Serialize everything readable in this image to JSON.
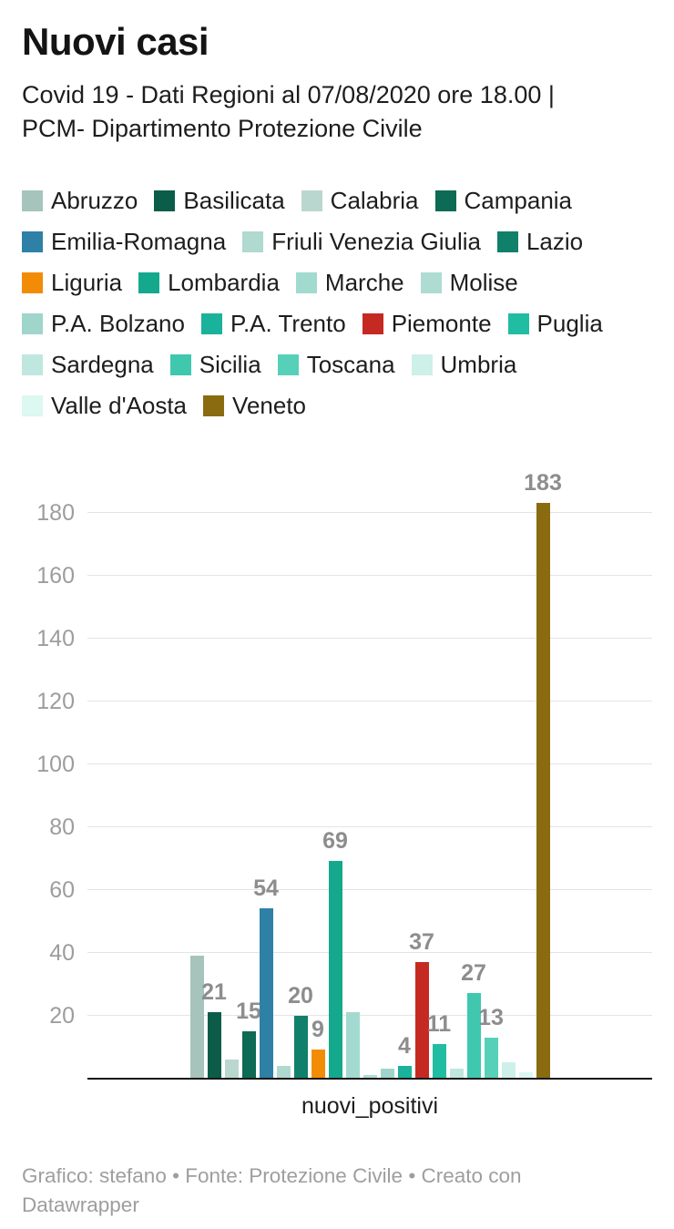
{
  "header": {
    "title": "Nuovi casi",
    "description": "Covid 19 - Dati Regioni al 07/08/2020 ore 18.00 | PCM- Dipartimento Protezione Civile"
  },
  "colors": {
    "background": "#ffffff",
    "gridline": "#e4e4e4",
    "baseline": "#161616",
    "axis_text": "#9d9d9d",
    "value_label": "#8d8d8d",
    "body_text": "#1d1d1d",
    "footer_text": "#9e9e9e"
  },
  "chart_data": {
    "type": "bar",
    "title": "Nuovi casi",
    "subtitle": "Covid 19 - Dati Regioni al 07/08/2020 ore 18.00 | PCM- Dipartimento Protezione Civile",
    "xlabel": "nuovi_positivi",
    "ylabel": "",
    "ylim": [
      0,
      190
    ],
    "yticks": [
      20,
      40,
      60,
      80,
      100,
      120,
      140,
      160,
      180
    ],
    "grid": true,
    "legend_position": "top",
    "categories": [
      "nuovi_positivi"
    ],
    "series": [
      {
        "name": "Abruzzo",
        "value": 39,
        "color": "#a6c4bb",
        "label_visible": false
      },
      {
        "name": "Basilicata",
        "value": 21,
        "color": "#0b5d49",
        "label_visible": true
      },
      {
        "name": "Calabria",
        "value": 6,
        "color": "#bad7cf",
        "label_visible": false
      },
      {
        "name": "Campania",
        "value": 15,
        "color": "#0d6b55",
        "label_visible": true
      },
      {
        "name": "Emilia-Romagna",
        "value": 54,
        "color": "#2e80a7",
        "label_visible": true
      },
      {
        "name": "Friuli Venezia Giulia",
        "value": 4,
        "color": "#b0d9d0",
        "label_visible": false
      },
      {
        "name": "Lazio",
        "value": 20,
        "color": "#10806a",
        "label_visible": true
      },
      {
        "name": "Liguria",
        "value": 9,
        "color": "#f28c06",
        "label_visible": true
      },
      {
        "name": "Lombardia",
        "value": 69,
        "color": "#14a98d",
        "label_visible": true
      },
      {
        "name": "Marche",
        "value": 21,
        "color": "#a3dad0",
        "label_visible": false
      },
      {
        "name": "Molise",
        "value": 1,
        "color": "#aedcd3",
        "label_visible": false
      },
      {
        "name": "P.A. Bolzano",
        "value": 3,
        "color": "#9fd5ca",
        "label_visible": false
      },
      {
        "name": "P.A. Trento",
        "value": 4,
        "color": "#1ab29a",
        "label_visible": true
      },
      {
        "name": "Piemonte",
        "value": 37,
        "color": "#c52a22",
        "label_visible": true
      },
      {
        "name": "Puglia",
        "value": 11,
        "color": "#20bda2",
        "label_visible": true
      },
      {
        "name": "Sardegna",
        "value": 3,
        "color": "#c0e7df",
        "label_visible": false
      },
      {
        "name": "Sicilia",
        "value": 27,
        "color": "#3fc8ae",
        "label_visible": true
      },
      {
        "name": "Toscana",
        "value": 13,
        "color": "#57d0b9",
        "label_visible": true
      },
      {
        "name": "Umbria",
        "value": 5,
        "color": "#cdf0e9",
        "label_visible": false
      },
      {
        "name": "Valle d'Aosta",
        "value": 2,
        "color": "#ddf7f1",
        "label_visible": false
      },
      {
        "name": "Veneto",
        "value": 183,
        "color": "#8a6b10",
        "label_visible": true
      }
    ]
  },
  "footer": {
    "credit": "Grafico: stefano • Fonte: Protezione Civile • Creato con Datawrapper"
  }
}
